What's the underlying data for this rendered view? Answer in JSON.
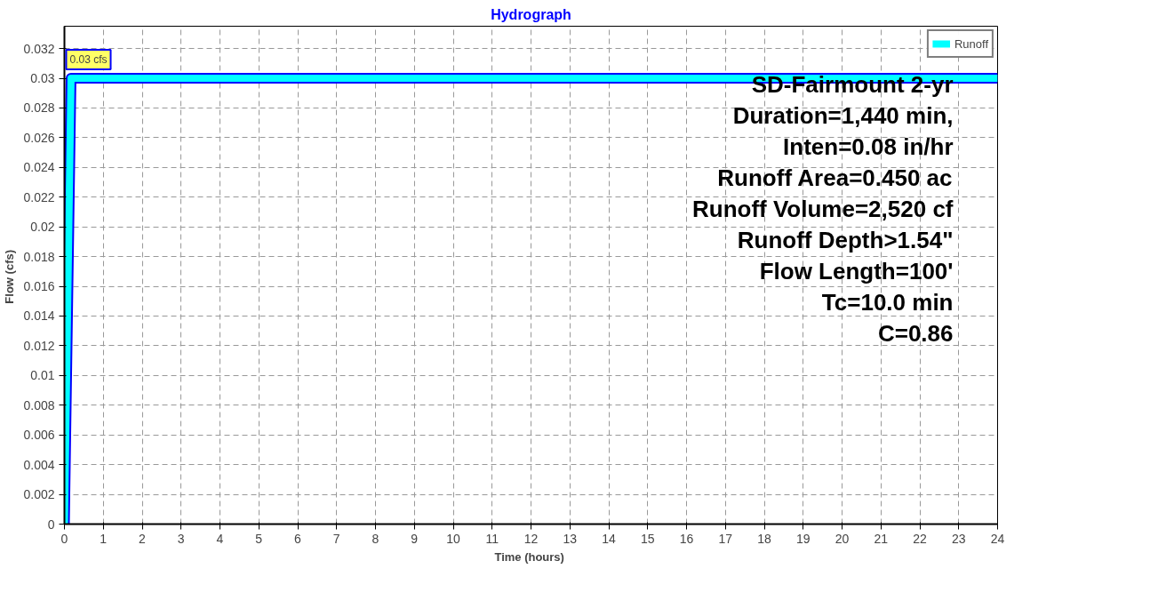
{
  "chart_data": {
    "type": "line",
    "title": "Hydrograph",
    "xlabel": "Time  (hours)",
    "ylabel": "Flow  (cfs)",
    "x": [
      0,
      0.17,
      24
    ],
    "series": [
      {
        "name": "Runoff",
        "color": "#00ffff",
        "values": [
          0,
          0.03,
          0.03
        ]
      }
    ],
    "xlim": [
      0,
      24
    ],
    "ylim": [
      0,
      0.0335
    ],
    "xticks": [
      0,
      1,
      2,
      3,
      4,
      5,
      6,
      7,
      8,
      9,
      10,
      11,
      12,
      13,
      14,
      15,
      16,
      17,
      18,
      19,
      20,
      21,
      22,
      23,
      24
    ],
    "yticks": [
      0,
      0.002,
      0.004,
      0.006,
      0.008,
      0.01,
      0.012,
      0.014,
      0.016,
      0.018,
      0.02,
      0.022,
      0.024,
      0.026,
      0.028,
      0.03,
      0.032
    ],
    "grid": true,
    "legend": "top right",
    "annotations": [
      {
        "text": "0.03 cfs",
        "x": 0,
        "y": 0.03
      },
      "SD-Fairmount 2-yr",
      "Duration=1,440 min,",
      "Inten=0.08 in/hr",
      "Runoff Area=0.450 ac",
      "Runoff Volume=2,520 cf",
      "Runoff Depth>1.54\"",
      "Flow Length=100'",
      "Tc=10.0 min",
      "C=0.86"
    ]
  }
}
